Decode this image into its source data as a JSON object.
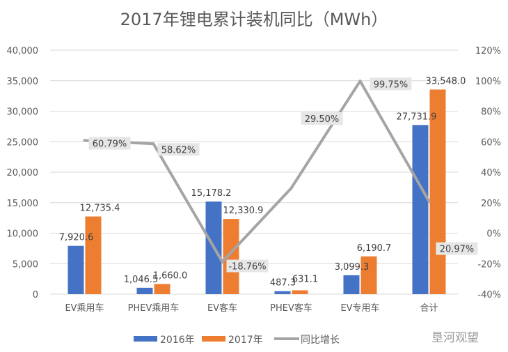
{
  "chart_data": {
    "type": "bar",
    "title": "2017年锂电累计装机同比（MWh）",
    "categories": [
      "EV乘用车",
      "PHEV乘用车",
      "EV客车",
      "PHEV客车",
      "EV专用车",
      "合计"
    ],
    "series": [
      {
        "name": "2016年",
        "type": "bar",
        "axis": "left",
        "color": "#4472C4",
        "values": [
          7920.6,
          1046.5,
          15178.2,
          487.3,
          3099.3,
          27731.9
        ],
        "labels": [
          "7,920.6",
          "1,046.5",
          "15,178.2",
          "487.3",
          "3,099.3",
          "27,731.9"
        ]
      },
      {
        "name": "2017年",
        "type": "bar",
        "axis": "left",
        "color": "#ED7D31",
        "values": [
          12735.4,
          1660.0,
          12330.9,
          631.1,
          6190.7,
          33548.0
        ],
        "labels": [
          "12,735.4",
          "1,660.0",
          "12,330.9",
          "631.1",
          "6,190.7",
          "33,548.0"
        ]
      },
      {
        "name": "同比增长",
        "type": "line",
        "axis": "right",
        "color": "#A5A5A5",
        "values": [
          60.79,
          58.62,
          -18.76,
          29.5,
          99.75,
          20.97
        ],
        "labels": [
          "60.79%",
          "58.62%",
          "-18.76%",
          "29.50%",
          "99.75%",
          "20.97%"
        ]
      }
    ],
    "ylim": [
      0,
      40000
    ],
    "y_ticks": [
      "0",
      "5,000",
      "10,000",
      "15,000",
      "20,000",
      "25,000",
      "30,000",
      "35,000",
      "40,000"
    ],
    "y2lim": [
      -40,
      120
    ],
    "y2_ticks": [
      "-40%",
      "-20%",
      "0%",
      "20%",
      "40%",
      "60%",
      "80%",
      "100%",
      "120%"
    ],
    "grid": true,
    "legend": "bottom"
  },
  "watermark": "垦河观望"
}
